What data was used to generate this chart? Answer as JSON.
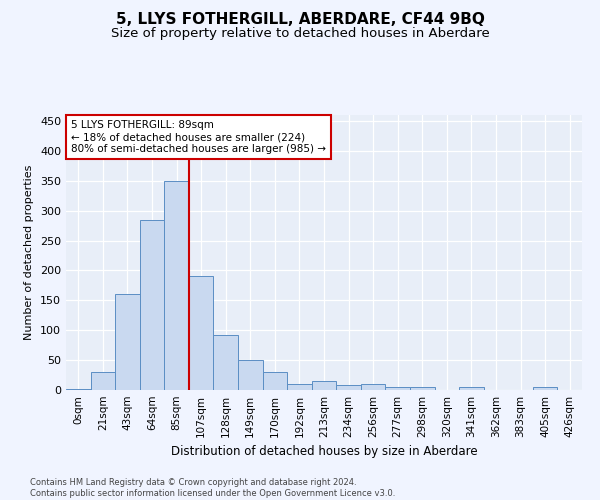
{
  "title": "5, LLYS FOTHERGILL, ABERDARE, CF44 9BQ",
  "subtitle": "Size of property relative to detached houses in Aberdare",
  "xlabel": "Distribution of detached houses by size in Aberdare",
  "ylabel": "Number of detached properties",
  "footer_line1": "Contains HM Land Registry data © Crown copyright and database right 2024.",
  "footer_line2": "Contains public sector information licensed under the Open Government Licence v3.0.",
  "bar_labels": [
    "0sqm",
    "21sqm",
    "43sqm",
    "64sqm",
    "85sqm",
    "107sqm",
    "128sqm",
    "149sqm",
    "170sqm",
    "192sqm",
    "213sqm",
    "234sqm",
    "256sqm",
    "277sqm",
    "298sqm",
    "320sqm",
    "341sqm",
    "362sqm",
    "383sqm",
    "405sqm",
    "426sqm"
  ],
  "bar_values": [
    2,
    30,
    160,
    285,
    350,
    190,
    92,
    50,
    30,
    10,
    15,
    8,
    10,
    5,
    5,
    0,
    5,
    0,
    0,
    5,
    0
  ],
  "bar_color": "#c9d9f0",
  "bar_edge_color": "#5b8ec4",
  "fig_bg_color": "#f0f4ff",
  "plot_bg_color": "#e8eef8",
  "grid_color": "#ffffff",
  "ylim": [
    0,
    460
  ],
  "yticks": [
    0,
    50,
    100,
    150,
    200,
    250,
    300,
    350,
    400,
    450
  ],
  "annotation_text": "5 LLYS FOTHERGILL: 89sqm\n← 18% of detached houses are smaller (224)\n80% of semi-detached houses are larger (985) →",
  "vline_x": 4.5,
  "annotation_box_color": "#ffffff",
  "annotation_box_edge": "#cc0000",
  "vline_color": "#cc0000",
  "title_fontsize": 11,
  "subtitle_fontsize": 9.5,
  "xlabel_fontsize": 8.5,
  "ylabel_fontsize": 8,
  "tick_fontsize": 7.5,
  "ytick_fontsize": 8,
  "ann_fontsize": 7.5,
  "footer_fontsize": 6
}
